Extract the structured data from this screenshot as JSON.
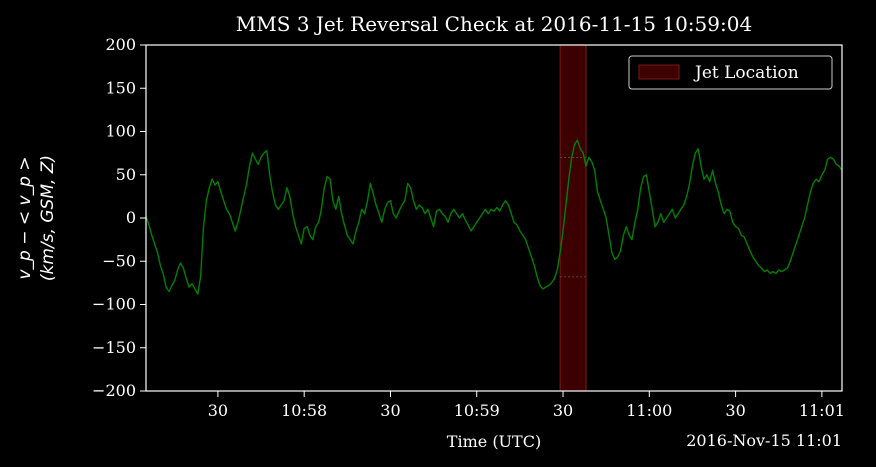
{
  "chart_data": {
    "type": "line",
    "title": "MMS 3 Jet Reversal Check at 2016-11-15 10:59:04",
    "xlabel": "Time (UTC)",
    "ylabel_line1": "v_p − < v_p >",
    "ylabel_line2": "(km/s, GSM, Z)",
    "date_label": "2016-Nov-15 11:01",
    "x_units": "seconds after 10:57:00 UTC",
    "xlim": [
      5,
      247
    ],
    "ylim": [
      -200,
      200
    ],
    "yticks": [
      -200,
      -150,
      -100,
      -50,
      0,
      50,
      100,
      150,
      200
    ],
    "ytick_labels": [
      "−200",
      "−150",
      "−100",
      "−50",
      "0",
      "50",
      "100",
      "150",
      "200"
    ],
    "xticks": [
      {
        "t": 30,
        "label": "30"
      },
      {
        "t": 60,
        "label": "10:58"
      },
      {
        "t": 90,
        "label": "30"
      },
      {
        "t": 120,
        "label": "10:59"
      },
      {
        "t": 150,
        "label": "30"
      },
      {
        "t": 180,
        "label": "11:00"
      },
      {
        "t": 210,
        "label": "30"
      },
      {
        "t": 240,
        "label": "11:01"
      }
    ],
    "legend": {
      "label": "Jet Location",
      "position": "top-right"
    },
    "jet_span": [
      149,
      158
    ],
    "jet_levels": [
      70,
      -68
    ],
    "series": [
      {
        "color": "#008000",
        "x": [
          5,
          6,
          7,
          8,
          9,
          10,
          11,
          12,
          13,
          14,
          15,
          16,
          17,
          18,
          19,
          20,
          21,
          22,
          23,
          24,
          25,
          26,
          27,
          28,
          29,
          30,
          31,
          32,
          33,
          34,
          35,
          36,
          37,
          38,
          39,
          40,
          41,
          42,
          43,
          44,
          45,
          46,
          47,
          48,
          49,
          50,
          51,
          52,
          53,
          54,
          55,
          56,
          57,
          58,
          59,
          60,
          61,
          62,
          63,
          64,
          65,
          66,
          67,
          68,
          69,
          70,
          71,
          72,
          73,
          74,
          75,
          76,
          77,
          78,
          79,
          80,
          81,
          82,
          83,
          84,
          85,
          86,
          87,
          88,
          89,
          90,
          91,
          92,
          93,
          94,
          95,
          96,
          97,
          98,
          99,
          100,
          101,
          102,
          103,
          104,
          105,
          106,
          107,
          108,
          109,
          110,
          111,
          112,
          113,
          114,
          115,
          116,
          117,
          118,
          119,
          120,
          121,
          122,
          123,
          124,
          125,
          126,
          127,
          128,
          129,
          130,
          131,
          132,
          133,
          134,
          135,
          136,
          137,
          138,
          139,
          140,
          141,
          142,
          143,
          144,
          145,
          146,
          147,
          148,
          149,
          150,
          151,
          152,
          153,
          154,
          155,
          156,
          157,
          158,
          159,
          160,
          161,
          162,
          163,
          164,
          165,
          166,
          167,
          168,
          169,
          170,
          171,
          172,
          173,
          174,
          175,
          176,
          177,
          178,
          179,
          180,
          181,
          182,
          183,
          184,
          185,
          186,
          187,
          188,
          189,
          190,
          191,
          192,
          193,
          194,
          195,
          196,
          197,
          198,
          199,
          200,
          201,
          202,
          203,
          204,
          205,
          206,
          207,
          208,
          209,
          210,
          211,
          212,
          213,
          214,
          215,
          216,
          217,
          218,
          219,
          220,
          221,
          222,
          223,
          224,
          225,
          226,
          227,
          228,
          229,
          230,
          231,
          232,
          233,
          234,
          235,
          236,
          237,
          238,
          239,
          240,
          241,
          242,
          243,
          244,
          245,
          246,
          247
        ],
        "y": [
          2,
          -8,
          -20,
          -30,
          -40,
          -55,
          -65,
          -80,
          -85,
          -78,
          -72,
          -60,
          -52,
          -58,
          -70,
          -80,
          -76,
          -82,
          -88,
          -68,
          -10,
          20,
          35,
          45,
          38,
          42,
          30,
          20,
          10,
          5,
          -5,
          -15,
          -5,
          10,
          25,
          40,
          60,
          75,
          68,
          62,
          70,
          75,
          78,
          50,
          30,
          15,
          10,
          15,
          20,
          35,
          25,
          5,
          -10,
          -20,
          -30,
          -12,
          -10,
          -20,
          -25,
          -10,
          -5,
          10,
          35,
          48,
          45,
          20,
          10,
          25,
          5,
          -8,
          -20,
          -25,
          -30,
          -15,
          -5,
          10,
          5,
          20,
          40,
          28,
          15,
          5,
          -5,
          10,
          18,
          20,
          5,
          0,
          8,
          15,
          20,
          40,
          35,
          20,
          10,
          15,
          12,
          5,
          10,
          0,
          -10,
          8,
          10,
          5,
          2,
          -5,
          5,
          10,
          5,
          0,
          5,
          -2,
          -8,
          -15,
          -10,
          -5,
          0,
          5,
          10,
          5,
          10,
          8,
          12,
          8,
          15,
          20,
          15,
          5,
          -5,
          -8,
          -15,
          -20,
          -25,
          -35,
          -45,
          -55,
          -68,
          -78,
          -82,
          -80,
          -78,
          -75,
          -70,
          -60,
          -40,
          -15,
          15,
          45,
          70,
          85,
          90,
          80,
          75,
          60,
          70,
          65,
          55,
          30,
          20,
          10,
          0,
          -20,
          -40,
          -48,
          -45,
          -38,
          -20,
          -10,
          -20,
          -25,
          -5,
          10,
          35,
          48,
          50,
          30,
          10,
          -10,
          -5,
          5,
          -5,
          0,
          5,
          10,
          0,
          5,
          10,
          15,
          25,
          40,
          60,
          75,
          80,
          60,
          45,
          50,
          42,
          55,
          40,
          30,
          15,
          5,
          10,
          8,
          -5,
          -10,
          -12,
          -20,
          -22,
          -30,
          -38,
          -45,
          -50,
          -55,
          -58,
          -62,
          -60,
          -64,
          -62,
          -64,
          -60,
          -62,
          -60,
          -58,
          -50,
          -40,
          -30,
          -20,
          -10,
          0,
          15,
          30,
          40,
          45,
          42,
          50,
          55,
          68,
          70,
          68,
          62,
          60,
          55
        ]
      }
    ],
    "colors": {
      "background": "#000000",
      "axes": "#ffffff",
      "series": "#008000",
      "jet_fill": "#3c0000",
      "jet_edge": "#7a1a1a",
      "legend_edge": "#cccccc"
    }
  }
}
